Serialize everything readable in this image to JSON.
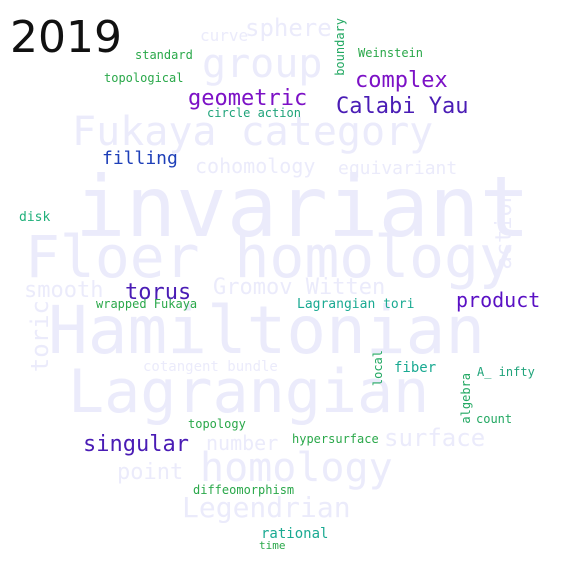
{
  "year": "2019",
  "colors": {
    "background_word": "#ebebfb",
    "year": "#111111"
  },
  "background_words": {
    "invariant": "invariant",
    "floer_homology": "Floer homology",
    "hamiltonian": "Hamiltonian",
    "lagrangian": "Lagrangian",
    "fukaya_category": "Fukaya category",
    "group": "group",
    "homology": "homology",
    "legendrian": "Legendrian",
    "sphere": "sphere",
    "cohomology": "cohomology",
    "equivariant": "equivariant",
    "gromov_witten": "Gromov Witten",
    "smooth": "smooth",
    "surface": "surface",
    "number": "number",
    "point": "point",
    "toric": "toric",
    "action": "action",
    "curve": "curve",
    "cotangent_bundle": "cotangent bundle"
  },
  "words": {
    "geometric": "geometric",
    "complex": "complex",
    "calabi_yau": "Calabi Yau",
    "filling": "filling",
    "torus": "torus",
    "product": "product",
    "singular": "singular",
    "standard": "standard",
    "topological": "topological",
    "circle_action": "circle action",
    "weinstein": "Weinstein",
    "boundary": "boundary",
    "disk": "disk",
    "wrapped_fukaya": "wrapped Fukaya",
    "lagrangian_tori": "Lagrangian tori",
    "fiber": "fiber",
    "local": "local",
    "a_infty": "A_ infty",
    "algebra": "algebra",
    "count": "count",
    "topology": "topology",
    "hypersurface": "hypersurface",
    "diffeomorphism": "diffeomorphism",
    "rational": "rational",
    "time": "time"
  }
}
